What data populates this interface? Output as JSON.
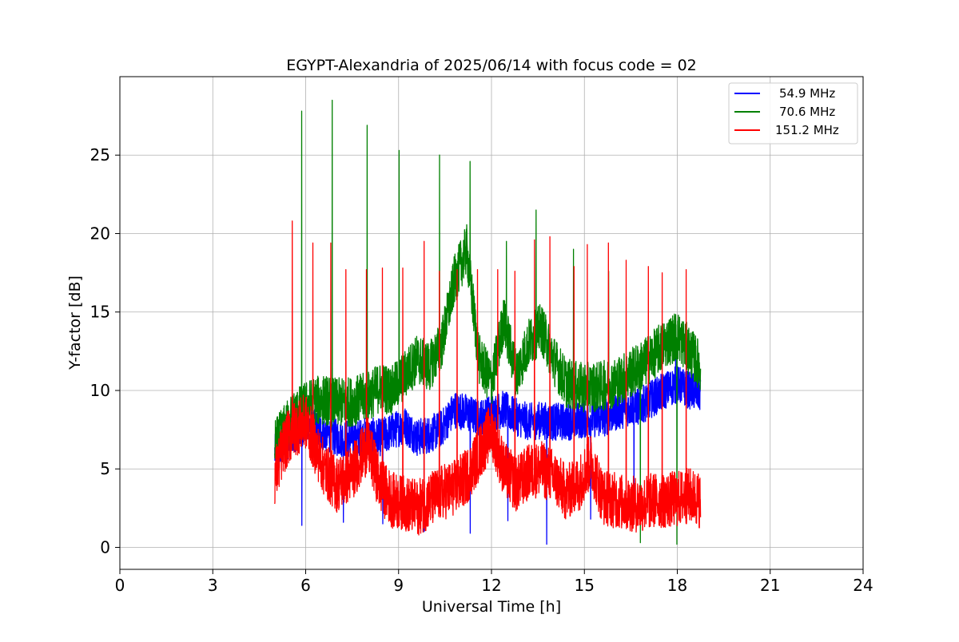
{
  "chart_data": {
    "type": "line",
    "title": "EGYPT-Alexandria of 2025/06/14 with focus code = 02",
    "xlabel": "Universal Time [h]",
    "ylabel": "Y-factor [dB]",
    "xlim": [
      0,
      24
    ],
    "ylim": [
      -1.4,
      30
    ],
    "xticks": [
      0,
      3,
      6,
      9,
      12,
      15,
      18,
      21,
      24
    ],
    "yticks": [
      0,
      5,
      10,
      15,
      20,
      25
    ],
    "grid": true,
    "legend_position": "top-right",
    "series": [
      {
        "name": "54.9 MHz",
        "color": "#0000ff",
        "x": [
          5.0,
          5.3,
          5.6,
          6.0,
          6.3,
          6.6,
          7.0,
          7.5,
          8.0,
          8.4,
          8.8,
          9.2,
          9.6,
          10.0,
          10.4,
          10.8,
          11.2,
          11.6,
          12.0,
          12.4,
          12.8,
          13.2,
          13.6,
          14.0,
          14.4,
          14.8,
          15.2,
          15.6,
          16.0,
          16.4,
          16.8,
          17.2,
          17.6,
          18.0,
          18.4,
          18.75
        ],
        "y": [
          6.0,
          6.5,
          7.2,
          7.8,
          7.6,
          7.3,
          7.0,
          6.9,
          7.1,
          7.0,
          7.4,
          7.8,
          7.0,
          7.2,
          7.6,
          8.8,
          8.6,
          8.2,
          8.6,
          8.8,
          8.3,
          8.0,
          8.1,
          8.0,
          8.0,
          8.1,
          8.2,
          8.2,
          8.6,
          8.9,
          9.0,
          9.5,
          10.0,
          10.4,
          10.0,
          9.8
        ],
        "noise": 1.2,
        "spike_count": 10,
        "spike_values": [
          1.4,
          1.6,
          1.5,
          1.0,
          0.9,
          1.7,
          0.2,
          1.8,
          2.0,
          13.0
        ]
      },
      {
        "name": "70.6 MHz",
        "color": "#008000",
        "x": [
          5.0,
          5.3,
          5.6,
          6.0,
          6.3,
          6.6,
          7.0,
          7.5,
          8.0,
          8.4,
          8.8,
          9.2,
          9.6,
          10.0,
          10.4,
          10.8,
          11.2,
          11.6,
          12.0,
          12.4,
          12.8,
          13.2,
          13.6,
          14.0,
          14.4,
          14.8,
          15.2,
          15.6,
          16.0,
          16.4,
          16.8,
          17.2,
          17.6,
          18.0,
          18.4,
          18.75
        ],
        "y": [
          6.5,
          7.5,
          8.4,
          9.0,
          9.3,
          9.4,
          9.2,
          9.3,
          9.6,
          10.2,
          10.0,
          11.0,
          12.0,
          11.5,
          13.0,
          17.0,
          19.0,
          12.0,
          10.5,
          14.5,
          11.0,
          13.0,
          14.0,
          12.0,
          10.5,
          10.2,
          10.2,
          10.3,
          10.5,
          11.0,
          11.5,
          12.2,
          13.0,
          13.5,
          12.5,
          11.5
        ],
        "noise": 1.6,
        "spike_count": 12,
        "spike_values": [
          27.8,
          28.5,
          26.9,
          25.3,
          25.0,
          24.6,
          19.5,
          21.5,
          19.0,
          17.6,
          0.3,
          0.2
        ]
      },
      {
        "name": "151.2 MHz",
        "color": "#ff0000",
        "x": [
          5.0,
          5.3,
          5.6,
          6.0,
          6.3,
          6.6,
          7.0,
          7.5,
          8.0,
          8.4,
          8.8,
          9.2,
          9.6,
          10.0,
          10.4,
          10.8,
          11.2,
          11.6,
          12.0,
          12.4,
          12.8,
          13.2,
          13.6,
          14.0,
          14.4,
          14.8,
          15.2,
          15.6,
          16.0,
          16.4,
          16.8,
          17.2,
          17.6,
          18.0,
          18.4,
          18.75
        ],
        "y": [
          4.5,
          6.5,
          7.5,
          8.0,
          6.5,
          5.0,
          4.0,
          4.8,
          6.5,
          4.0,
          3.0,
          2.8,
          2.5,
          3.0,
          3.5,
          3.8,
          4.5,
          6.0,
          7.5,
          5.0,
          4.0,
          4.8,
          5.0,
          4.5,
          3.5,
          4.0,
          5.5,
          3.2,
          3.0,
          2.8,
          2.7,
          3.0,
          3.0,
          3.1,
          3.3,
          3.0
        ],
        "noise": 1.8,
        "spike_count": 22,
        "spike_values": [
          20.8,
          19.4,
          19.4,
          17.7,
          17.7,
          17.8,
          17.8,
          19.5,
          17.6,
          17.7,
          17.7,
          17.7,
          17.6,
          19.6,
          19.8,
          17.9,
          19.3,
          19.4,
          18.3,
          17.9,
          17.5,
          17.7
        ]
      }
    ]
  }
}
